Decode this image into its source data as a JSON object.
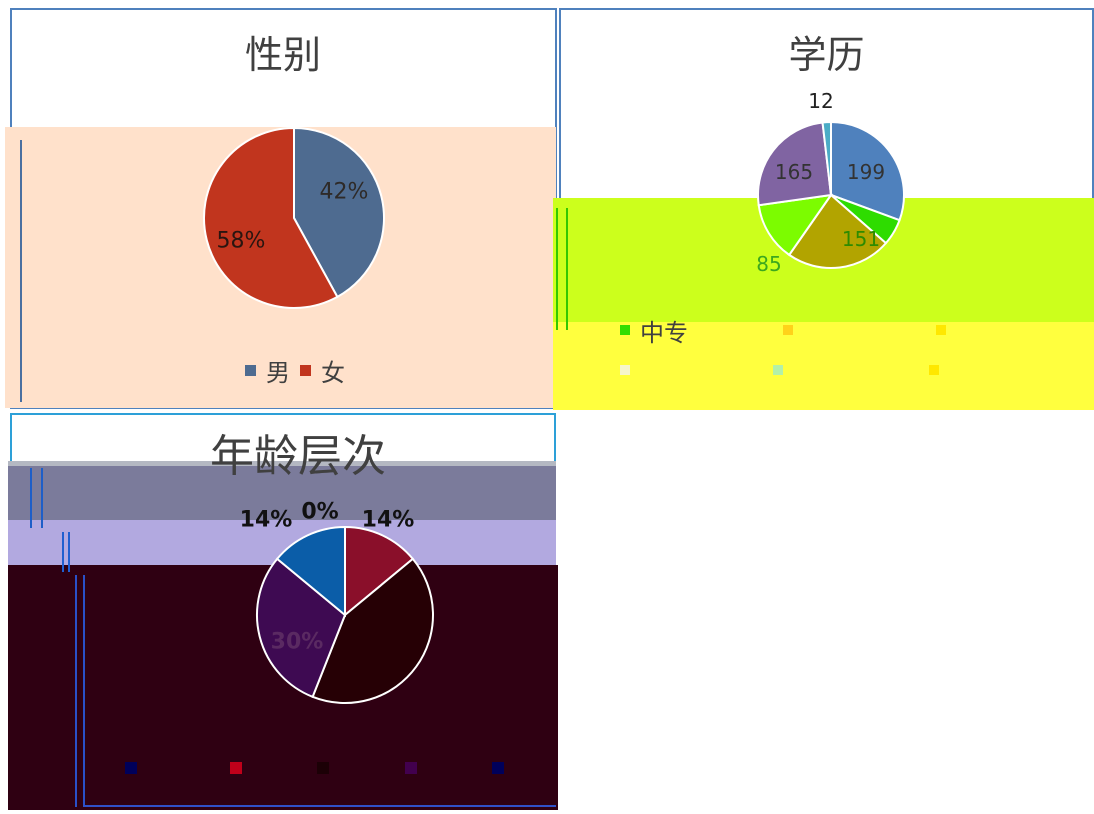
{
  "chart_data": [
    {
      "type": "pie",
      "title": "性别",
      "categories": [
        "男",
        "女"
      ],
      "values": [
        42,
        58
      ],
      "data_labels": [
        "42%",
        "58%"
      ],
      "colors": [
        "#4E6B90",
        "#C1351E"
      ],
      "label_colors": [
        "#2E2A28",
        "#2A1510"
      ],
      "legend_colors": [
        "#4E6B90",
        "#C1351E"
      ],
      "legend_position": "bottom"
    },
    {
      "type": "pie",
      "title": "学历",
      "categories": [
        "中专",
        null,
        null,
        null,
        null,
        null
      ],
      "values": [
        199,
        38,
        151,
        85,
        165,
        12
      ],
      "data_labels": [
        "199",
        null,
        "151",
        "85",
        "165",
        "12"
      ],
      "colors": [
        "#4F81BD",
        "#2EDC00",
        "#B2A400",
        "#7CFC00",
        "#8064A2",
        "#4BACC6"
      ],
      "label_colors": [
        "#333333",
        null,
        "#2E8B00",
        "#3CA81E",
        "#333333",
        "#222222"
      ],
      "legend_colors": [
        "#33DD00",
        "#FFD21A",
        "#FFE800",
        "#F6F6CC",
        "#B4F0A8",
        "#FFE800"
      ],
      "legend_position": "bottom"
    },
    {
      "type": "pie",
      "title": "年龄层次",
      "categories": [
        null,
        null,
        null,
        null,
        null
      ],
      "values": [
        0,
        14,
        42,
        30,
        14
      ],
      "data_labels": [
        "0%",
        "14%",
        null,
        "30%",
        "14%"
      ],
      "colors": [
        "#1F4E9A",
        "#8A0F2A",
        "#260005",
        "#3E0A52",
        "#0B5DA8"
      ],
      "label_colors": [
        "#111111",
        "#111111",
        null,
        "#5A2A62",
        "#111111"
      ],
      "legend_colors": [
        "#00005A",
        "#C0001A",
        "#1C0006",
        "#42004E",
        "#00005A"
      ],
      "legend_position": "bottom"
    }
  ]
}
